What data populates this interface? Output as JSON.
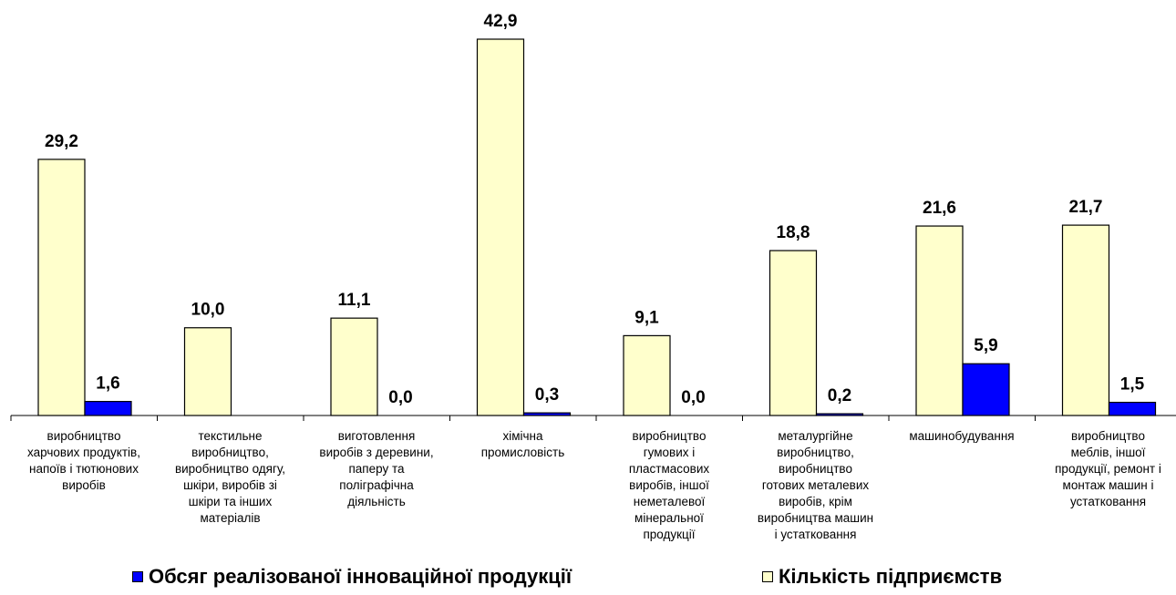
{
  "chart_data": {
    "type": "bar",
    "categories": [
      [
        "виробництво",
        "харчових продуктів,",
        "напоїв і тютюнових",
        "виробів"
      ],
      [
        "текстильне",
        "виробництво,",
        "виробництво одягу,",
        "шкіри, виробів зі",
        "шкіри та інших",
        "матеріалів"
      ],
      [
        "виготовлення",
        "виробів з деревини,",
        "паперу та",
        "поліграфічна",
        "діяльність"
      ],
      [
        "хімічна",
        "промисловість"
      ],
      [
        "виробництво",
        "гумових і",
        "пластмасових",
        "виробів, іншої",
        "неметалевої",
        "мінеральної",
        "продукції"
      ],
      [
        "металургійне",
        "виробництво,",
        "виробництво",
        "готових металевих",
        "виробів, крім",
        "виробництва машин",
        "і устатковання"
      ],
      [
        "машинобудування"
      ],
      [
        "виробництво",
        "меблів, іншої",
        "продукції, ремонт і",
        "монтаж машин і",
        "устатковання"
      ]
    ],
    "series": [
      {
        "name": "Кількість підприємств",
        "values": [
          29.2,
          10.0,
          11.1,
          42.9,
          9.1,
          18.8,
          21.6,
          21.7
        ],
        "labels": [
          "29,2",
          "10,0",
          "11,1",
          "42,9",
          "9,1",
          "18,8",
          "21,6",
          "21,7"
        ],
        "color": "#FFFFCC"
      },
      {
        "name": "Обсяг реалізованої інноваційної продукції",
        "values": [
          1.6,
          0.0,
          0.0,
          0.3,
          0.0,
          0.2,
          5.9,
          1.5
        ],
        "labels": [
          "1,6",
          "",
          "0,0",
          "0,3",
          "0,0",
          "0,2",
          "5,9",
          "1,5"
        ],
        "color": "#0000FF"
      }
    ],
    "ylim": [
      0,
      42.9
    ],
    "grid": false,
    "legend_position": "bottom"
  },
  "legend": [
    {
      "label": "Обсяг реалізованої інноваційної продукції",
      "color": "#0000FF"
    },
    {
      "label": "Кількість підприємств",
      "color": "#FFFFCC"
    }
  ]
}
